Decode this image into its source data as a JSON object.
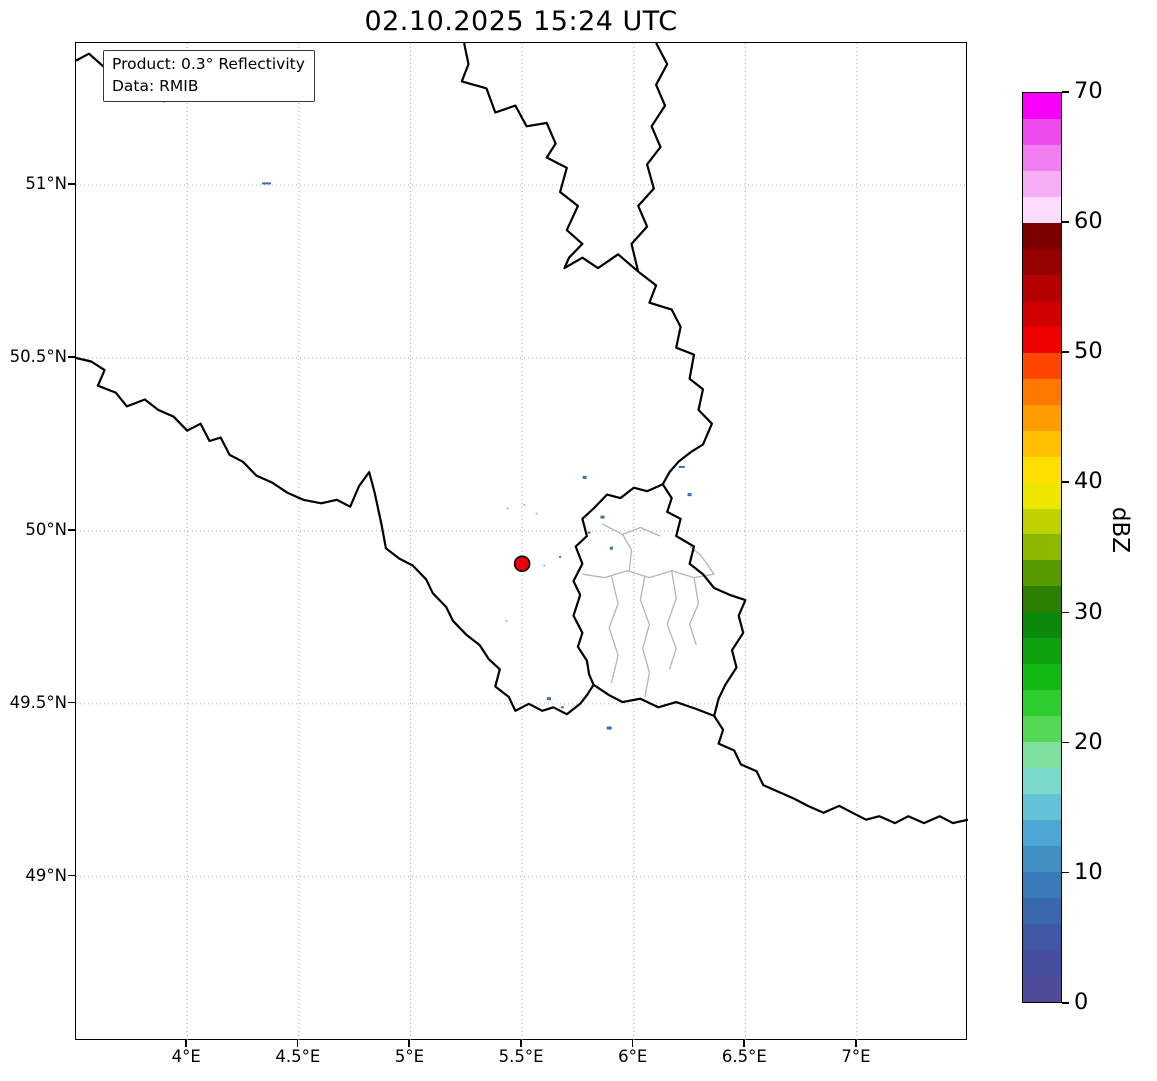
{
  "chart_data": {
    "type": "map",
    "title": "02.10.2025 15:24 UTC",
    "annotation": {
      "product": "Product: 0.3° Reflectivity",
      "source": "Data: RMIB"
    },
    "extent": {
      "lon_min": 3.502,
      "lon_max": 7.497,
      "lat_min": 48.525,
      "lat_max": 51.411
    },
    "x_ticks": [
      {
        "value": 4.0,
        "label": "4°E"
      },
      {
        "value": 4.5,
        "label": "4.5°E"
      },
      {
        "value": 5.0,
        "label": "5°E"
      },
      {
        "value": 5.5,
        "label": "5.5°E"
      },
      {
        "value": 6.0,
        "label": "6°E"
      },
      {
        "value": 6.5,
        "label": "6.5°E"
      },
      {
        "value": 7.0,
        "label": "7°E"
      }
    ],
    "y_ticks": [
      {
        "value": 51.0,
        "label": "51°N"
      },
      {
        "value": 50.5,
        "label": "50.5°N"
      },
      {
        "value": 50.0,
        "label": "50°N"
      },
      {
        "value": 49.5,
        "label": "49.5°N"
      },
      {
        "value": 49.0,
        "label": "49°N"
      }
    ],
    "grid": {
      "style": "dotted",
      "color": "#aaaaaa"
    },
    "radar_marker": {
      "lon": 5.5,
      "lat": 49.905,
      "color": "#e8000e",
      "edge_color": "#000000"
    },
    "colorbar": {
      "label": "dBZ",
      "vmin": 0,
      "vmax": 70,
      "ticks": [
        0,
        10,
        20,
        30,
        40,
        50,
        60,
        70
      ],
      "colors_top_to_bottom": [
        "#f800f8",
        "#ee4bee",
        "#f07ef0",
        "#f6aef6",
        "#fbdcfb",
        "#7c0000",
        "#970000",
        "#b30000",
        "#d10000",
        "#ee0000",
        "#ff4600",
        "#ff7800",
        "#ff9c00",
        "#ffc000",
        "#ffe000",
        "#efe600",
        "#bed200",
        "#8cb800",
        "#579a00",
        "#2c7f00",
        "#0b8a0b",
        "#0ea30e",
        "#12bb12",
        "#2fcc2f",
        "#55d855",
        "#7fdf9e",
        "#7bd9cb",
        "#63c2d8",
        "#4ea6d2",
        "#4090c4",
        "#3b7ab8",
        "#3a68ac",
        "#4058a4",
        "#47509e",
        "#4e4c96"
      ]
    },
    "borders": {
      "national_color": "#000000",
      "subdivision_color": "#b5b5b5",
      "national": [
        [
          [
            3.502,
            51.36
          ],
          [
            3.56,
            51.38
          ],
          [
            3.63,
            51.34
          ],
          [
            3.7,
            51.33
          ],
          [
            3.76,
            51.29
          ],
          [
            3.83,
            51.3
          ],
          [
            3.9,
            51.24
          ]
        ],
        [
          [
            5.24,
            51.411
          ],
          [
            5.26,
            51.35
          ],
          [
            5.23,
            51.3
          ],
          [
            5.34,
            51.28
          ],
          [
            5.38,
            51.21
          ],
          [
            5.47,
            51.23
          ],
          [
            5.52,
            51.17
          ],
          [
            5.61,
            51.18
          ],
          [
            5.65,
            51.12
          ],
          [
            5.61,
            51.08
          ],
          [
            5.7,
            51.05
          ],
          [
            5.67,
            50.98
          ],
          [
            5.75,
            50.94
          ],
          [
            5.7,
            50.87
          ],
          [
            5.77,
            50.83
          ],
          [
            5.71,
            50.79
          ],
          [
            5.69,
            50.76
          ],
          [
            5.77,
            50.79
          ],
          [
            5.84,
            50.76
          ],
          [
            5.93,
            50.8
          ],
          [
            6.02,
            50.75
          ]
        ],
        [
          [
            6.02,
            50.75
          ],
          [
            5.99,
            50.83
          ],
          [
            6.06,
            50.88
          ],
          [
            6.02,
            50.94
          ],
          [
            6.09,
            50.99
          ],
          [
            6.06,
            51.06
          ],
          [
            6.12,
            51.11
          ],
          [
            6.08,
            51.17
          ],
          [
            6.14,
            51.23
          ],
          [
            6.1,
            51.29
          ],
          [
            6.15,
            51.35
          ],
          [
            6.1,
            51.411
          ]
        ],
        [
          [
            6.02,
            50.75
          ],
          [
            6.1,
            50.71
          ],
          [
            6.07,
            50.66
          ],
          [
            6.17,
            50.64
          ],
          [
            6.21,
            50.59
          ],
          [
            6.19,
            50.53
          ],
          [
            6.27,
            50.51
          ],
          [
            6.25,
            50.44
          ],
          [
            6.31,
            50.41
          ],
          [
            6.29,
            50.35
          ],
          [
            6.35,
            50.31
          ],
          [
            6.31,
            50.25
          ],
          [
            6.26,
            50.23
          ],
          [
            6.2,
            50.2
          ],
          [
            6.16,
            50.17
          ],
          [
            6.13,
            50.135
          ]
        ],
        [
          [
            6.13,
            50.135
          ],
          [
            6.06,
            50.115
          ],
          [
            6.0,
            50.125
          ],
          [
            5.94,
            50.095
          ],
          [
            5.88,
            50.105
          ],
          [
            5.82,
            50.065
          ],
          [
            5.77,
            50.035
          ],
          [
            5.79,
            49.985
          ],
          [
            5.74,
            49.955
          ],
          [
            5.77,
            49.905
          ],
          [
            5.73,
            49.855
          ],
          [
            5.76,
            49.815
          ],
          [
            5.73,
            49.755
          ],
          [
            5.77,
            49.705
          ],
          [
            5.75,
            49.665
          ],
          [
            5.79,
            49.625
          ],
          [
            5.8,
            49.585
          ],
          [
            5.82,
            49.555
          ]
        ],
        [
          [
            5.82,
            49.555
          ],
          [
            5.89,
            49.525
          ],
          [
            5.95,
            49.505
          ],
          [
            6.03,
            49.515
          ],
          [
            6.11,
            49.49
          ],
          [
            6.19,
            49.505
          ],
          [
            6.28,
            49.485
          ],
          [
            6.36,
            49.465
          ]
        ],
        [
          [
            6.13,
            50.135
          ],
          [
            6.17,
            50.095
          ],
          [
            6.15,
            50.055
          ],
          [
            6.21,
            50.035
          ],
          [
            6.19,
            49.985
          ],
          [
            6.27,
            49.955
          ],
          [
            6.25,
            49.905
          ],
          [
            6.31,
            49.875
          ],
          [
            6.36,
            49.835
          ],
          [
            6.43,
            49.815
          ],
          [
            6.5,
            49.8
          ],
          [
            6.47,
            49.755
          ],
          [
            6.49,
            49.705
          ],
          [
            6.44,
            49.655
          ],
          [
            6.46,
            49.605
          ],
          [
            6.41,
            49.555
          ],
          [
            6.38,
            49.515
          ],
          [
            6.36,
            49.465
          ]
        ],
        [
          [
            3.502,
            50.5
          ],
          [
            3.57,
            50.49
          ],
          [
            3.63,
            50.465
          ],
          [
            3.6,
            50.42
          ],
          [
            3.68,
            50.4
          ],
          [
            3.73,
            50.36
          ],
          [
            3.81,
            50.38
          ],
          [
            3.87,
            50.35
          ],
          [
            3.94,
            50.33
          ],
          [
            4.0,
            50.29
          ],
          [
            4.06,
            50.31
          ],
          [
            4.1,
            50.26
          ],
          [
            4.15,
            50.27
          ],
          [
            4.19,
            50.22
          ],
          [
            4.25,
            50.2
          ],
          [
            4.31,
            50.16
          ],
          [
            4.38,
            50.14
          ],
          [
            4.45,
            50.11
          ],
          [
            4.52,
            50.09
          ],
          [
            4.6,
            50.08
          ],
          [
            4.67,
            50.09
          ],
          [
            4.73,
            50.07
          ],
          [
            4.77,
            50.13
          ],
          [
            4.815,
            50.17
          ],
          [
            4.84,
            50.11
          ],
          [
            4.87,
            50.02
          ],
          [
            4.89,
            49.95
          ],
          [
            4.95,
            49.92
          ],
          [
            5.01,
            49.9
          ],
          [
            5.07,
            49.86
          ],
          [
            5.1,
            49.82
          ],
          [
            5.16,
            49.78
          ],
          [
            5.19,
            49.74
          ],
          [
            5.25,
            49.7
          ],
          [
            5.31,
            49.67
          ],
          [
            5.35,
            49.63
          ],
          [
            5.4,
            49.6
          ],
          [
            5.38,
            49.55
          ],
          [
            5.44,
            49.52
          ],
          [
            5.47,
            49.48
          ],
          [
            5.53,
            49.5
          ],
          [
            5.59,
            49.48
          ],
          [
            5.64,
            49.49
          ],
          [
            5.7,
            49.47
          ],
          [
            5.76,
            49.5
          ],
          [
            5.79,
            49.525
          ],
          [
            5.82,
            49.555
          ]
        ],
        [
          [
            6.36,
            49.465
          ],
          [
            6.4,
            49.425
          ],
          [
            6.38,
            49.385
          ],
          [
            6.45,
            49.365
          ],
          [
            6.48,
            49.325
          ],
          [
            6.55,
            49.305
          ],
          [
            6.58,
            49.265
          ],
          [
            6.65,
            49.245
          ],
          [
            6.72,
            49.225
          ],
          [
            6.78,
            49.205
          ],
          [
            6.85,
            49.185
          ],
          [
            6.92,
            49.205
          ],
          [
            6.98,
            49.185
          ],
          [
            7.04,
            49.165
          ],
          [
            7.1,
            49.175
          ],
          [
            7.17,
            49.155
          ],
          [
            7.23,
            49.175
          ],
          [
            7.3,
            49.155
          ],
          [
            7.37,
            49.175
          ],
          [
            7.43,
            49.155
          ],
          [
            7.497,
            49.165
          ]
        ]
      ],
      "subdivisions": [
        [
          [
            5.77,
            49.875
          ],
          [
            5.87,
            49.865
          ],
          [
            5.97,
            49.885
          ],
          [
            6.07,
            49.865
          ],
          [
            6.17,
            49.885
          ],
          [
            6.27,
            49.865
          ],
          [
            6.36,
            49.875
          ]
        ],
        [
          [
            6.05,
            49.87
          ],
          [
            6.03,
            49.8
          ],
          [
            6.07,
            49.73
          ],
          [
            6.04,
            49.66
          ],
          [
            6.07,
            49.59
          ],
          [
            6.05,
            49.52
          ]
        ],
        [
          [
            5.9,
            49.87
          ],
          [
            5.93,
            49.79
          ],
          [
            5.89,
            49.72
          ],
          [
            5.93,
            49.64
          ],
          [
            5.9,
            49.56
          ]
        ],
        [
          [
            6.17,
            49.885
          ],
          [
            6.19,
            49.805
          ],
          [
            6.15,
            49.73
          ],
          [
            6.19,
            49.66
          ],
          [
            6.16,
            49.6
          ]
        ],
        [
          [
            5.86,
            50.02
          ],
          [
            5.95,
            49.99
          ],
          [
            6.03,
            50.01
          ],
          [
            6.12,
            49.985
          ]
        ],
        [
          [
            5.98,
            49.885
          ],
          [
            5.99,
            49.945
          ],
          [
            5.95,
            49.99
          ]
        ],
        [
          [
            6.27,
            49.865
          ],
          [
            6.29,
            49.79
          ],
          [
            6.25,
            49.73
          ],
          [
            6.28,
            49.67
          ]
        ],
        [
          [
            6.36,
            49.875
          ],
          [
            6.3,
            49.93
          ],
          [
            6.25,
            49.955
          ]
        ]
      ]
    },
    "echo_colors": {
      "blue": "#3d6db5",
      "gray": "#bcbcca"
    },
    "echoes": [
      {
        "lon": 4.355,
        "lat": 51.005,
        "w": 9,
        "h": 2,
        "c": "blue"
      },
      {
        "lon": 5.78,
        "lat": 50.155,
        "w": 4,
        "h": 3,
        "c": "blue"
      },
      {
        "lon": 6.215,
        "lat": 50.185,
        "w": 6,
        "h": 2,
        "c": "blue"
      },
      {
        "lon": 6.25,
        "lat": 50.105,
        "w": 4,
        "h": 3,
        "c": "blue"
      },
      {
        "lon": 5.86,
        "lat": 50.04,
        "w": 4,
        "h": 3,
        "c": "blue"
      },
      {
        "lon": 5.8,
        "lat": 49.995,
        "w": 3,
        "h": 2,
        "c": "blue"
      },
      {
        "lon": 5.9,
        "lat": 49.95,
        "w": 3,
        "h": 3,
        "c": "blue"
      },
      {
        "lon": 5.67,
        "lat": 49.925,
        "w": 2,
        "h": 2,
        "c": "blue"
      },
      {
        "lon": 5.6,
        "lat": 49.9,
        "w": 2,
        "h": 2,
        "c": "gray"
      },
      {
        "lon": 5.435,
        "lat": 50.065,
        "w": 2,
        "h": 2,
        "c": "gray"
      },
      {
        "lon": 5.51,
        "lat": 50.075,
        "w": 2,
        "h": 2,
        "c": "gray"
      },
      {
        "lon": 5.565,
        "lat": 50.05,
        "w": 2,
        "h": 2,
        "c": "gray"
      },
      {
        "lon": 5.43,
        "lat": 49.74,
        "w": 2,
        "h": 2,
        "c": "gray"
      },
      {
        "lon": 5.62,
        "lat": 49.515,
        "w": 4,
        "h": 3,
        "c": "blue"
      },
      {
        "lon": 5.68,
        "lat": 49.49,
        "w": 3,
        "h": 2,
        "c": "blue"
      },
      {
        "lon": 5.89,
        "lat": 49.43,
        "w": 5,
        "h": 3,
        "c": "blue"
      }
    ]
  }
}
